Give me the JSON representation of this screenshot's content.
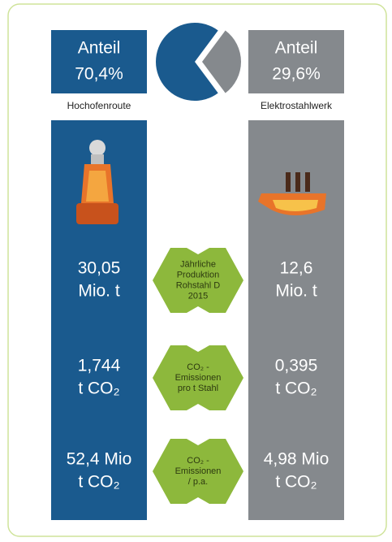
{
  "left": {
    "header": "Anteil",
    "share": {
      "value": 70.4,
      "label": "70,4%"
    },
    "name": "Hochofenroute",
    "rows": [
      {
        "value": "30,05",
        "unit": "Mio. t"
      },
      {
        "value": "1,744",
        "unit": "t CO₂"
      },
      {
        "value": "52,4 Mio",
        "unit": "t CO₂"
      }
    ]
  },
  "right": {
    "header": "Anteil",
    "share": {
      "value": 29.6,
      "label": "29,6%"
    },
    "name": "Elektrostahlwerk",
    "rows": [
      {
        "value": "12,6",
        "unit": "Mio. t"
      },
      {
        "value": "0,395",
        "unit": "t CO₂"
      },
      {
        "value": "4,98 Mio",
        "unit": "t CO₂"
      }
    ]
  },
  "labels": [
    [
      "Jährliche",
      "Produktion",
      "Rohstahl D",
      "2015"
    ],
    [
      "CO₂ -",
      "Emissionen",
      "pro t Stahl"
    ],
    [
      "CO₂ -",
      "Emissionen",
      "/ p.a."
    ]
  ]
}
